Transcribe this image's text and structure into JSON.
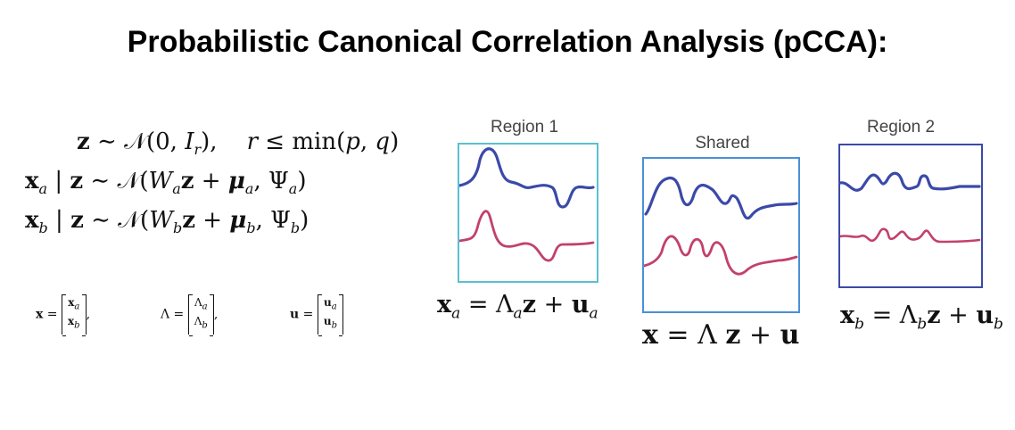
{
  "title": "Probabilistic Canonical Correlation Analysis (pCCA):",
  "equations": {
    "line1": "z ~ 𝒩(0, Iᵣ),    r ≤ min(p, q)",
    "line2": "xₐ | z ~ 𝒩(Wₐz + μₐ, Ψₐ)",
    "line3": "x_b | z ~ 𝒩(W_b z + μ_b, Ψ_b)"
  },
  "stacked_defs": [
    {
      "lhs": "x =",
      "top": "xₐ",
      "bottom": "x_b"
    },
    {
      "lhs": "Λ =",
      "top": "Λₐ",
      "bottom": "Λ_b"
    },
    {
      "lhs": "u =",
      "top": "uₐ",
      "bottom": "u_b"
    }
  ],
  "panels": {
    "region1": {
      "label": "Region 1",
      "equation": "xₐ = Λₐz + uₐ",
      "border_color": "#5bc0cf"
    },
    "shared": {
      "label": "Shared",
      "equation": "x = Λ z + u",
      "border_color": "#4a90d9"
    },
    "region2": {
      "label": "Region 2",
      "equation": "x_b = Λ_b z + u_b",
      "border_color": "#3b4aa8"
    }
  },
  "colors": {
    "blue_trace": "#3b4aa8",
    "red_trace": "#c2416b"
  }
}
